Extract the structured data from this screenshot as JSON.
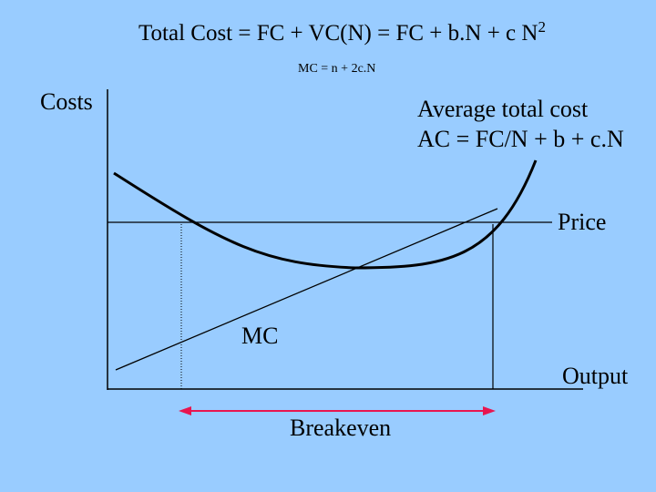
{
  "title": {
    "text": "Total Cost = FC + VC(N) = FC + b.N + c N",
    "exponent": "2"
  },
  "mc_equation": "MC = n + 2c.N",
  "y_axis_label": "Costs",
  "x_axis_label": "Output",
  "average_cost": {
    "line1": "Average total cost",
    "line2": "AC = FC/N + b + c.N"
  },
  "price_label": "Price",
  "mc_label": "MC",
  "breakeven_label": "Breakeven",
  "colors": {
    "background": "#99ccff",
    "ink": "#000000",
    "breakeven_arrow": "#e8154f"
  }
}
